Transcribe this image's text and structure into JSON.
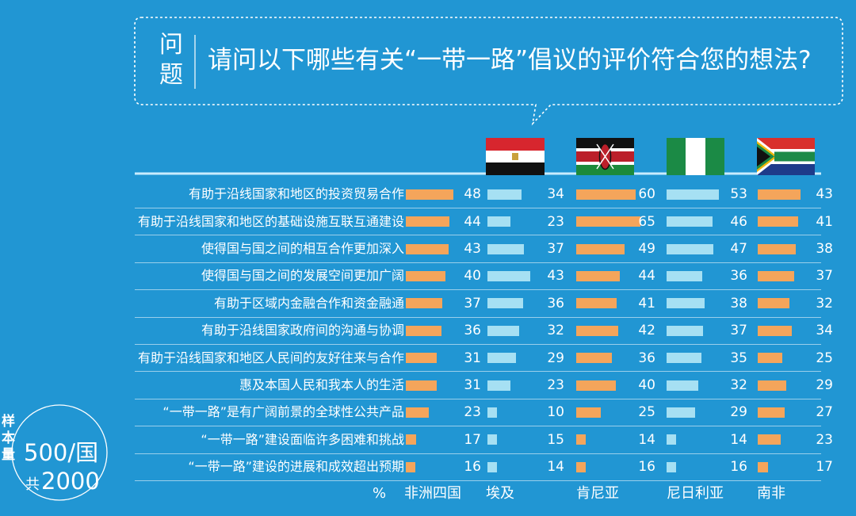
{
  "header": {
    "question_tag": "问题",
    "question": "请问以下哪些有关“一带一路”倡议的评价符合您的想法?"
  },
  "sample": {
    "label": "样本量",
    "per_country": "500/国",
    "total_prefix": "共",
    "total": "2000"
  },
  "footer": {
    "unit": "%",
    "columns": [
      "非洲四国",
      "埃及",
      "肯尼亚",
      "尼日利亚",
      "南非"
    ]
  },
  "flags": [
    "egypt-flag",
    "kenya-flag",
    "nigeria-flag",
    "south-africa-flag"
  ],
  "colors": {
    "background": "#2196d3",
    "highlight_bar": "#f4a55b",
    "normal_bar": "#a6e0f3",
    "text": "#ffffff"
  },
  "chart_data": {
    "type": "bar",
    "unit": "%",
    "categories": [
      "有助于沿线国家和地区的投资贸易合作",
      "有助于沿线国家和地区的基础设施互联互通建设",
      "使得国与国之间的相互合作更加深入",
      "使得国与国之间的发展空间更加广阔",
      "有助于区域内金融合作和资金融通",
      "有助于沿线国家政府间的沟通与协调",
      "有助于沿线国家和地区人民间的友好往来与合作",
      "惠及本国人民和我本人的生活",
      "“一带一路”是有广阔前景的全球性公共产品",
      "“一带一路”建设面临许多困难和挑战",
      "“一带一路”建设的进展和成效超出预期"
    ],
    "series": [
      {
        "name": "非洲四国",
        "values": [
          48,
          44,
          43,
          40,
          37,
          36,
          31,
          31,
          23,
          17,
          16
        ]
      },
      {
        "name": "埃及",
        "values": [
          34,
          23,
          37,
          43,
          36,
          32,
          29,
          23,
          10,
          15,
          14
        ]
      },
      {
        "name": "肯尼亚",
        "values": [
          60,
          65,
          49,
          44,
          41,
          42,
          36,
          40,
          25,
          14,
          16
        ]
      },
      {
        "name": "尼日利亚",
        "values": [
          53,
          46,
          47,
          36,
          38,
          37,
          35,
          32,
          29,
          14,
          16
        ]
      },
      {
        "name": "南非",
        "values": [
          43,
          41,
          38,
          37,
          32,
          34,
          25,
          29,
          27,
          23,
          17
        ]
      }
    ]
  }
}
